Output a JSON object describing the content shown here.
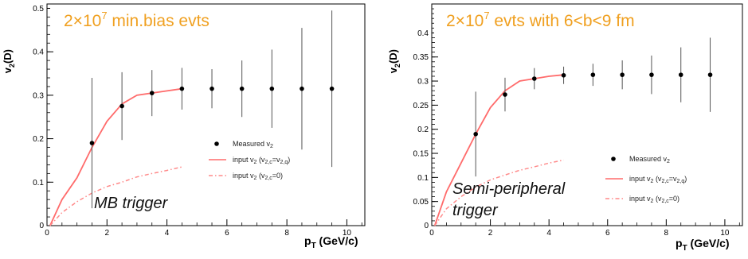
{
  "chart_data": [
    {
      "type": "scatter",
      "title": "",
      "banner": {
        "prefix": "2×10",
        "exponent": "7",
        "suffix": " min.bias evts"
      },
      "annotation": [
        "MB trigger"
      ],
      "xlabel": {
        "main": "p",
        "sub": "T",
        "unit": " (GeV/c)"
      },
      "ylabel": {
        "main": "v",
        "sub": "2",
        "paren": "(D)"
      },
      "xlim": [
        0,
        10.6
      ],
      "ylim": [
        0,
        0.51
      ],
      "xticks": [
        0,
        2,
        4,
        6,
        8,
        10
      ],
      "yticks": [
        0.1,
        0.2,
        0.3,
        0.4,
        0.5
      ],
      "ytick_labels": [
        "0.1",
        "0.2",
        "0.3",
        "0.4",
        "0.5"
      ],
      "grid": false,
      "legend_position": "bottom-right",
      "series": [
        {
          "name": "Measured v2",
          "legend": {
            "main": "Measured v",
            "sub": "2"
          },
          "kind": "points",
          "color": "#000000",
          "x": [
            1.5,
            2.5,
            3.5,
            4.5,
            5.5,
            6.5,
            7.5,
            8.5,
            9.5
          ],
          "y": [
            0.19,
            0.275,
            0.305,
            0.315,
            0.315,
            0.315,
            0.315,
            0.315,
            0.315
          ],
          "err": [
            0.15,
            0.078,
            0.053,
            0.048,
            0.045,
            0.065,
            0.09,
            0.14,
            0.18
          ]
        },
        {
          "name": "input v2 (v2,c=v2,q)",
          "legend": {
            "main": "input v",
            "sub": "2",
            "mid": " (v",
            "sub2": "2,c",
            "mid2": "=v",
            "sub3": "2,q",
            "end": ")"
          },
          "kind": "line",
          "style": "solid",
          "color": "#ff6b6b",
          "x": [
            0.1,
            0.5,
            1.0,
            1.5,
            2.0,
            2.5,
            3.0,
            3.5,
            4.0,
            4.5
          ],
          "y": [
            0.0,
            0.06,
            0.11,
            0.18,
            0.24,
            0.28,
            0.3,
            0.305,
            0.31,
            0.315
          ]
        },
        {
          "name": "input v2 (v2,c=0)",
          "legend": {
            "main": "input v",
            "sub": "2",
            "mid": " (v",
            "sub2": "2,c",
            "mid2": "=0",
            "sub3": "",
            "end": ")"
          },
          "kind": "line",
          "style": "dashdot",
          "color": "#ff8a8a",
          "x": [
            0.1,
            0.5,
            1.0,
            1.5,
            2.0,
            2.5,
            3.0,
            3.5,
            4.0,
            4.5
          ],
          "y": [
            0.0,
            0.03,
            0.055,
            0.075,
            0.09,
            0.1,
            0.112,
            0.12,
            0.127,
            0.135
          ]
        }
      ]
    },
    {
      "type": "scatter",
      "title": "",
      "banner": {
        "prefix": "2×10",
        "exponent": "7",
        "suffix": " evts with 6<b<9 fm"
      },
      "annotation": [
        "Semi-peripheral",
        "trigger"
      ],
      "xlabel": {
        "main": "p",
        "sub": "T",
        "unit": " (GeV/c)"
      },
      "ylabel": {
        "main": "v",
        "sub": "2",
        "paren": "(D)"
      },
      "xlim": [
        0,
        10.6
      ],
      "ylim": [
        0,
        0.46
      ],
      "xticks": [
        0,
        2,
        4,
        6,
        8,
        10
      ],
      "yticks": [
        0.05,
        0.1,
        0.15,
        0.2,
        0.25,
        0.3,
        0.35,
        0.4
      ],
      "ytick_labels": [
        "0.05",
        "0.1",
        "0.15",
        "0.2",
        "0.25",
        "0.3",
        "0.35",
        "0.4"
      ],
      "grid": false,
      "legend_position": "bottom-right",
      "series": [
        {
          "name": "Measured v2",
          "legend": {
            "main": "Measured v",
            "sub": "2"
          },
          "kind": "points",
          "color": "#000000",
          "x": [
            1.5,
            2.5,
            3.5,
            4.5,
            5.5,
            6.5,
            7.5,
            8.5,
            9.5
          ],
          "y": [
            0.19,
            0.272,
            0.305,
            0.312,
            0.313,
            0.313,
            0.313,
            0.313,
            0.313
          ],
          "err": [
            0.088,
            0.035,
            0.022,
            0.018,
            0.023,
            0.03,
            0.04,
            0.057,
            0.077
          ]
        },
        {
          "name": "input v2 (v2,c=v2,q)",
          "legend": {
            "main": "input v",
            "sub": "2",
            "mid": " (v",
            "sub2": "2,c",
            "mid2": "=v",
            "sub3": "2,q",
            "end": ")"
          },
          "kind": "line",
          "style": "solid",
          "color": "#ff6b6b",
          "x": [
            0.1,
            0.5,
            1.0,
            1.5,
            2.0,
            2.5,
            3.0,
            3.5,
            4.0,
            4.5
          ],
          "y": [
            0.0,
            0.07,
            0.13,
            0.19,
            0.245,
            0.28,
            0.3,
            0.305,
            0.31,
            0.313
          ]
        },
        {
          "name": "input v2 (v2,c=0)",
          "legend": {
            "main": "input v",
            "sub": "2",
            "mid": " (v",
            "sub2": "2,c",
            "mid2": "=0",
            "sub3": "",
            "end": ")"
          },
          "kind": "line",
          "style": "dashdot",
          "color": "#ff8a8a",
          "x": [
            0.1,
            0.5,
            1.0,
            1.5,
            2.0,
            2.5,
            3.0,
            3.5,
            4.0,
            4.5
          ],
          "y": [
            0.0,
            0.035,
            0.06,
            0.08,
            0.095,
            0.105,
            0.115,
            0.122,
            0.13,
            0.136
          ]
        }
      ]
    }
  ]
}
